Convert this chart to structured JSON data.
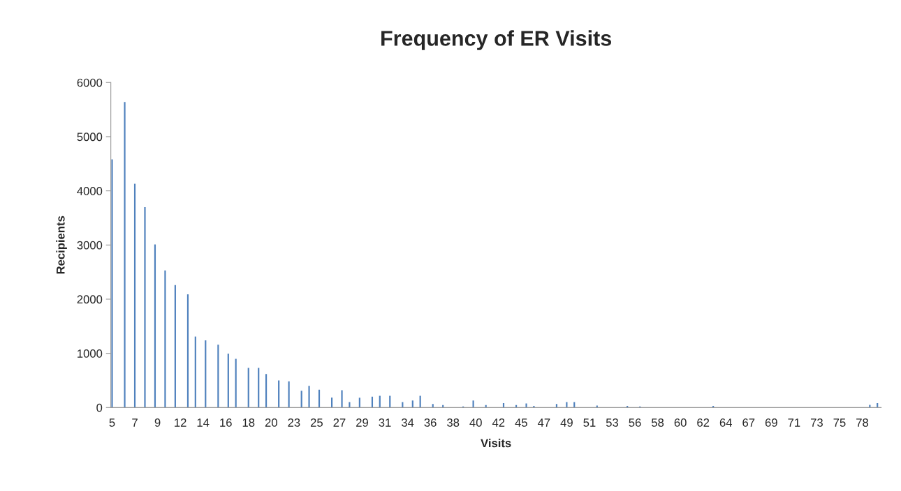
{
  "chart_data": {
    "type": "bar",
    "title": "Frequency of ER Visits",
    "xlabel": "Visits",
    "ylabel": "Recipients",
    "categories": [
      "5",
      null,
      null,
      null,
      null,
      null,
      null,
      null,
      null,
      "7",
      null,
      null,
      null,
      null,
      null,
      null,
      null,
      null,
      "9",
      null,
      null,
      null,
      null,
      null,
      null,
      null,
      null,
      "12",
      null,
      null,
      null,
      null,
      null,
      null,
      null,
      null,
      "14",
      null,
      null,
      null,
      null,
      null,
      null,
      null,
      null,
      "16",
      null,
      null,
      null,
      null,
      null,
      null,
      null,
      null,
      "18",
      null,
      null,
      null,
      null,
      null,
      null,
      null,
      null,
      "20",
      null,
      null,
      null,
      null,
      null,
      null,
      null,
      null,
      "23",
      null,
      null,
      null,
      null,
      null,
      null,
      null,
      null,
      "25",
      null,
      null,
      null,
      null,
      null,
      null,
      null,
      null,
      "27",
      null,
      null,
      null,
      null,
      null,
      null,
      null,
      null,
      "29",
      null,
      null,
      null,
      null,
      null,
      null,
      null,
      null,
      "31",
      null,
      null,
      null,
      null,
      null,
      null,
      null,
      null,
      "34",
      null,
      null,
      null,
      null,
      null,
      null,
      null,
      null,
      "36",
      null,
      null,
      null,
      null,
      null,
      null,
      null,
      null,
      "38",
      null,
      null,
      null,
      null,
      null,
      null,
      null,
      null,
      "40",
      null,
      null,
      null,
      null,
      null,
      null,
      null,
      null,
      "42",
      null,
      null,
      null,
      null,
      null,
      null,
      null,
      null,
      "45",
      null,
      null,
      null,
      null,
      null,
      null,
      null,
      null,
      "47",
      null,
      null,
      null,
      null,
      null,
      null,
      null,
      null,
      "49",
      null,
      null,
      null,
      null,
      null,
      null,
      null,
      null,
      "51",
      null,
      null,
      null,
      null,
      null,
      null,
      null,
      null,
      "53",
      null,
      null,
      null,
      null,
      null,
      null,
      null,
      null,
      "56",
      null,
      null,
      null,
      null,
      null,
      null,
      null,
      null,
      "58",
      null,
      null,
      null,
      null,
      null,
      null,
      null,
      null,
      "60",
      null,
      null,
      null,
      null,
      null,
      null,
      null,
      null,
      "62",
      null,
      null,
      null,
      null,
      null,
      null,
      null,
      null,
      "64",
      null,
      null,
      null,
      null,
      null,
      null,
      null,
      null,
      "67",
      null,
      null,
      null,
      null,
      null,
      null,
      null,
      null,
      "69",
      null,
      null,
      null,
      null,
      null,
      null,
      null,
      null,
      "71",
      null,
      null,
      null,
      null,
      null,
      null,
      null,
      null,
      "73",
      null,
      null,
      null,
      null,
      null,
      null,
      null,
      null,
      "75",
      null,
      null,
      null,
      null,
      null,
      null,
      null,
      null,
      "78",
      null,
      null,
      null,
      null,
      null,
      null,
      null
    ],
    "values": [
      4580,
      0,
      0,
      0,
      0,
      5640,
      0,
      0,
      0,
      4130,
      0,
      0,
      0,
      3700,
      0,
      0,
      0,
      3010,
      0,
      0,
      0,
      2530,
      0,
      0,
      0,
      2260,
      0,
      0,
      0,
      0,
      2090,
      0,
      0,
      1310,
      0,
      0,
      0,
      1240,
      0,
      0,
      0,
      0,
      1160,
      0,
      0,
      0,
      995,
      0,
      0,
      900,
      0,
      0,
      0,
      0,
      730,
      0,
      0,
      0,
      730,
      0,
      0,
      620,
      0,
      0,
      0,
      0,
      500,
      0,
      0,
      0,
      485,
      0,
      0,
      0,
      0,
      310,
      0,
      0,
      400,
      0,
      0,
      0,
      330,
      0,
      0,
      0,
      0,
      185,
      0,
      0,
      0,
      320,
      0,
      0,
      100,
      0,
      0,
      0,
      180,
      0,
      0,
      0,
      0,
      200,
      0,
      0,
      215,
      0,
      0,
      0,
      215,
      0,
      0,
      0,
      0,
      100,
      0,
      0,
      0,
      130,
      0,
      0,
      215,
      0,
      0,
      0,
      0,
      65,
      0,
      0,
      0,
      47,
      0,
      0,
      0,
      0,
      0,
      0,
      0,
      20,
      0,
      0,
      0,
      130,
      0,
      0,
      0,
      0,
      47,
      0,
      0,
      0,
      0,
      0,
      0,
      80,
      0,
      0,
      0,
      0,
      47,
      0,
      0,
      0,
      75,
      0,
      0,
      30,
      0,
      0,
      0,
      0,
      0,
      0,
      0,
      0,
      65,
      0,
      0,
      0,
      100,
      0,
      0,
      100,
      0,
      0,
      0,
      0,
      0,
      0,
      0,
      0,
      35,
      0,
      0,
      0,
      0,
      0,
      0,
      0,
      0,
      0,
      0,
      0,
      30,
      0,
      0,
      0,
      0,
      20,
      0,
      0,
      0,
      0,
      0,
      0,
      0,
      0,
      0,
      0,
      0,
      0,
      0,
      0,
      0,
      0,
      0,
      0,
      0,
      0,
      0,
      0,
      0,
      0,
      0,
      0,
      0,
      0,
      30,
      0,
      0,
      0,
      0,
      0,
      0,
      0,
      0,
      0,
      0,
      0,
      0,
      0,
      0,
      0,
      0,
      0,
      0,
      0,
      0,
      0,
      0,
      0,
      0,
      0,
      0,
      0,
      0,
      0,
      0,
      0,
      0,
      0,
      0,
      0,
      0,
      0,
      0,
      0,
      0,
      0,
      0,
      0,
      0,
      0,
      0,
      0,
      0,
      0,
      0,
      0,
      0,
      0,
      0,
      0,
      0,
      0,
      0,
      0,
      0,
      0,
      50,
      0,
      0,
      80,
      0
    ],
    "color": "#4f81bd",
    "ylim": [
      0,
      6000
    ],
    "yticks": [
      0,
      1000,
      2000,
      3000,
      4000,
      5000,
      6000
    ],
    "grid": false,
    "legend": false
  }
}
